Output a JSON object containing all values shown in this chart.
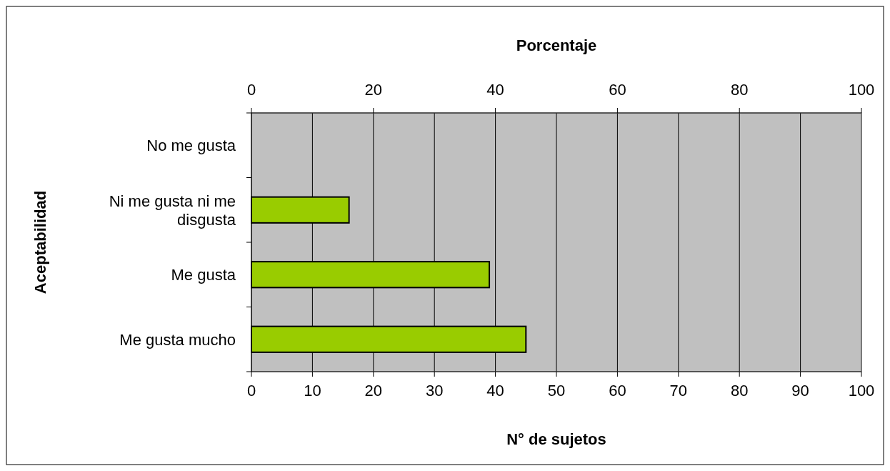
{
  "chart_data": {
    "type": "bar",
    "orientation": "horizontal",
    "categories": [
      "No me gusta",
      "Ni me gusta ni me disgusta",
      "Me gusta",
      "Me gusta mucho"
    ],
    "values": [
      0,
      16,
      39,
      45
    ],
    "color": "#99cc00",
    "xlabel": "N° de sujetos",
    "ylabel": "Aceptabilidad",
    "x2label": "Porcentaje",
    "xlim": [
      0,
      100
    ],
    "xticks": [
      0,
      10,
      20,
      30,
      40,
      50,
      60,
      70,
      80,
      90,
      100
    ],
    "x2lim": [
      0,
      100
    ],
    "x2ticks": [
      0,
      20,
      40,
      60,
      80,
      100
    ],
    "grid": "x"
  }
}
